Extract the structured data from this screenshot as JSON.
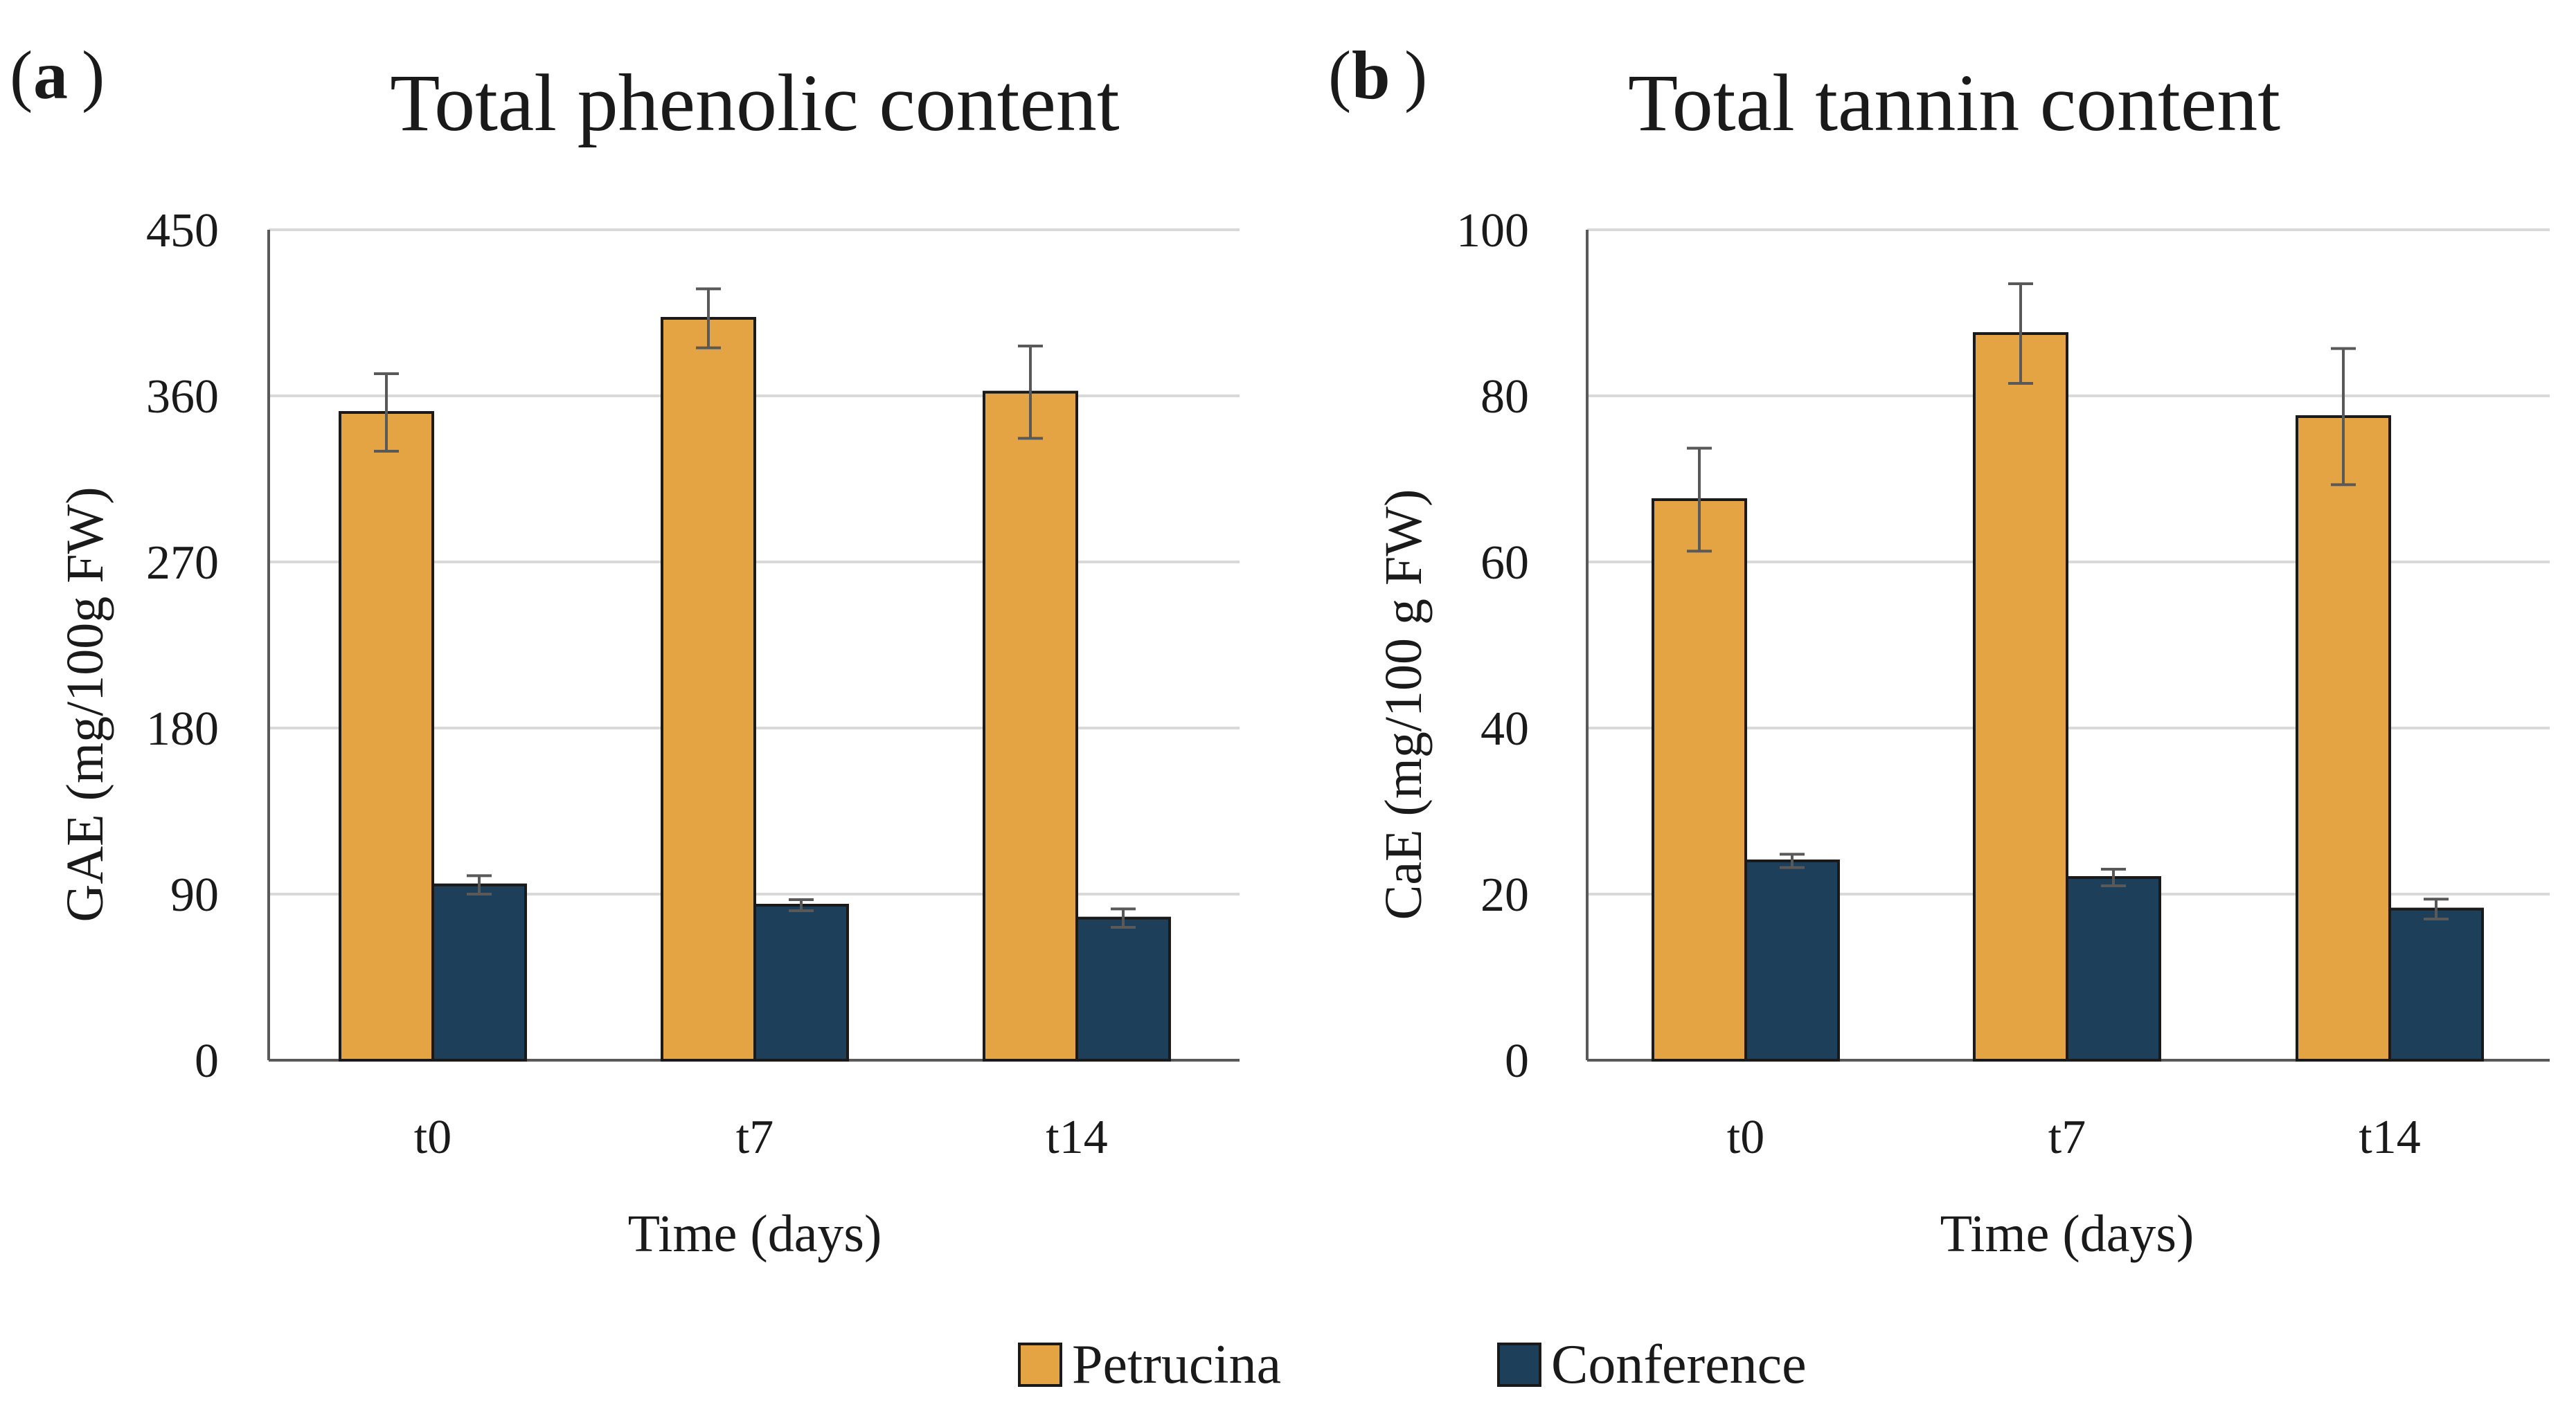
{
  "colors": {
    "petrucina": "#E5A444",
    "conference": "#1D3F5A"
  },
  "legend": [
    {
      "name": "Petrucina",
      "color": "#E5A444"
    },
    {
      "name": "Conference",
      "color": "#1D3F5A"
    }
  ],
  "chart_data": [
    {
      "type": "bar",
      "panel_label": "a",
      "title": "Total phenolic content",
      "xlabel": "Time (days)",
      "ylabel": "GAE (mg/100g FW)",
      "categories": [
        "t0",
        "t7",
        "t14"
      ],
      "ylim": [
        0,
        450
      ],
      "yticks": [
        0,
        90,
        180,
        270,
        360,
        450
      ],
      "grid": true,
      "series": [
        {
          "name": "Petrucina",
          "values": [
            351,
            402,
            362
          ],
          "errors": [
            21,
            16,
            25
          ]
        },
        {
          "name": "Conference",
          "values": [
            95,
            84,
            77
          ],
          "errors": [
            5,
            3,
            5
          ]
        }
      ]
    },
    {
      "type": "bar",
      "panel_label": "b",
      "title": "Total tannin content",
      "xlabel": "Time (days)",
      "ylabel": "CaE (mg/100 g FW)",
      "categories": [
        "t0",
        "t7",
        "t14"
      ],
      "ylim": [
        0,
        100
      ],
      "yticks": [
        0,
        20,
        40,
        60,
        80,
        100
      ],
      "grid": true,
      "series": [
        {
          "name": "Petrucina",
          "values": [
            67.5,
            87.5,
            77.5
          ],
          "errors": [
            6.2,
            6.0,
            8.2
          ]
        },
        {
          "name": "Conference",
          "values": [
            24,
            22,
            18.2
          ],
          "errors": [
            0.8,
            1.0,
            1.2
          ]
        }
      ]
    }
  ]
}
